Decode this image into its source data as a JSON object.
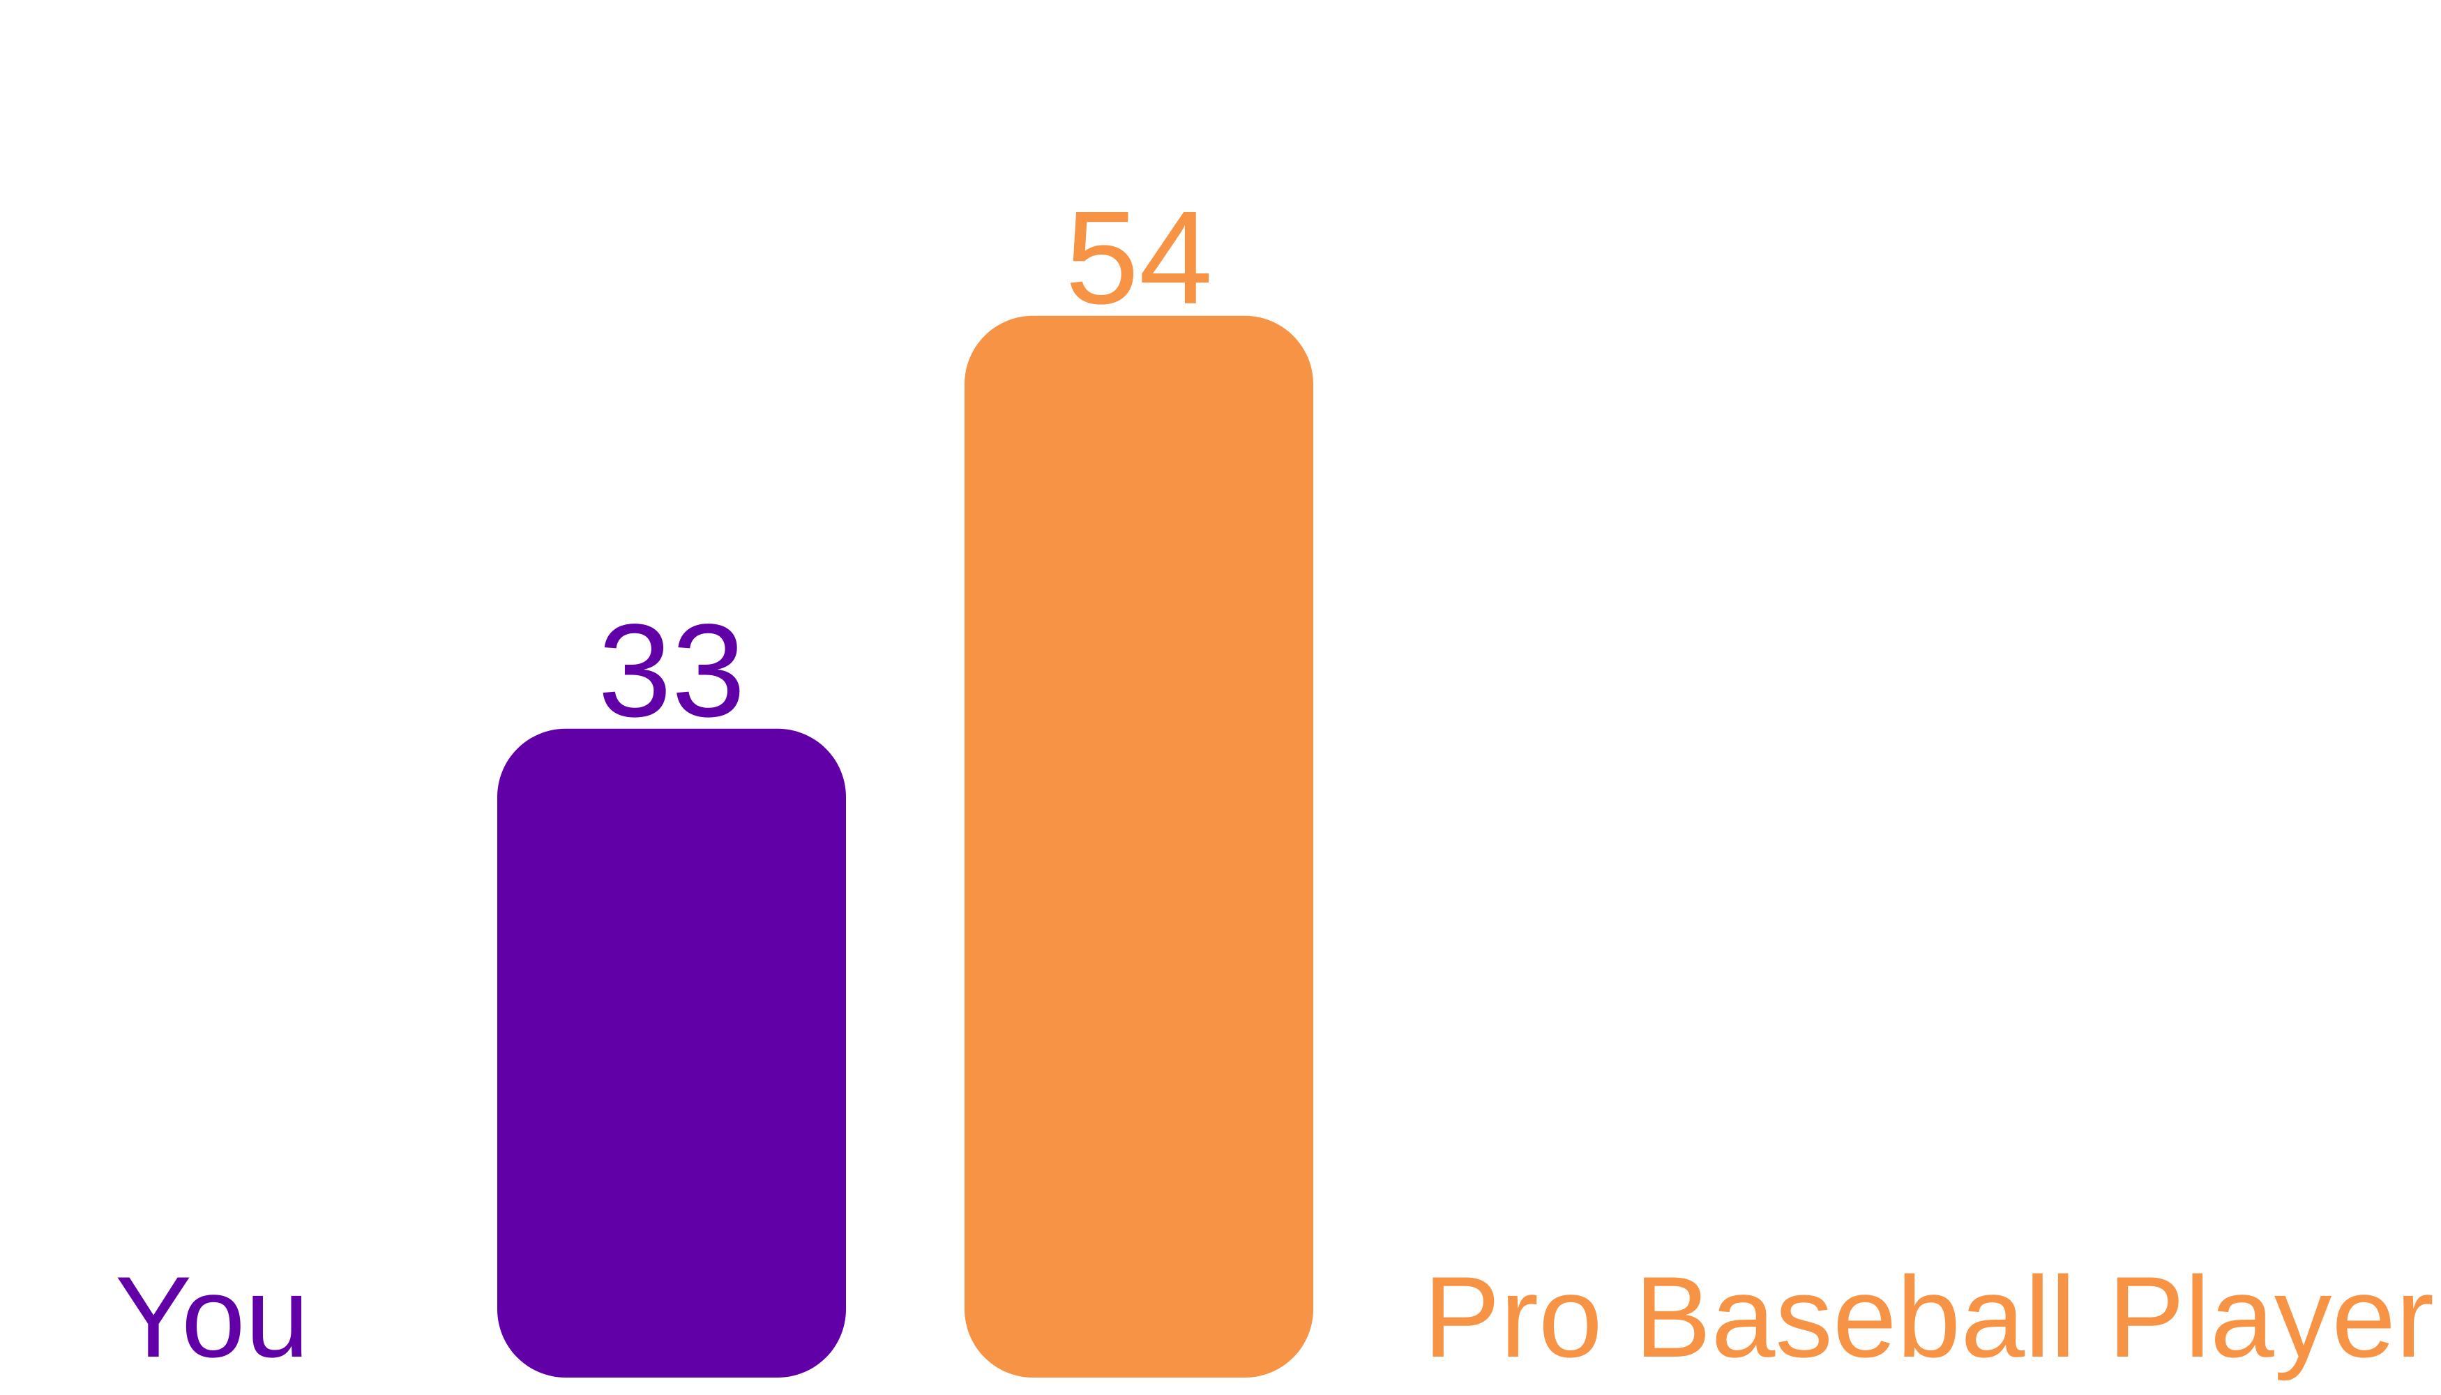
{
  "chart_data": {
    "type": "bar",
    "categories": [
      "You",
      "Pro Baseball Player"
    ],
    "values": [
      33,
      54
    ],
    "value_labels": [
      "33",
      "54"
    ],
    "colors": [
      "#6200a8",
      "#f69345"
    ],
    "title": "",
    "xlabel": "",
    "ylabel": "",
    "ylim": [
      0,
      58
    ],
    "grid": false,
    "legend": "none"
  }
}
